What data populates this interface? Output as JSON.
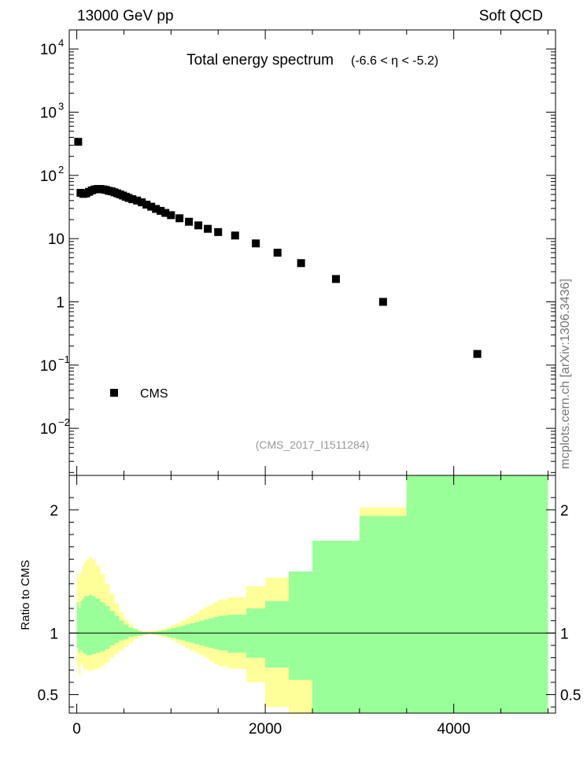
{
  "header": {
    "left": "13000 GeV pp",
    "right": "Soft QCD"
  },
  "side_label": "mcplots.cern.ch [arXiv:1306.3436]",
  "chart_data": [
    {
      "type": "scatter",
      "title": "Total energy spectrum",
      "subtitle": "(-6.6 < η < -5.2)",
      "watermark": "(CMS_2017_I1511284)",
      "xlim": [
        -80,
        5080
      ],
      "ylog": true,
      "ylim": [
        0.0018,
        20000
      ],
      "yticks": [
        {
          "v": 0.01,
          "b": "10",
          "e": "−2"
        },
        {
          "v": 0.1,
          "b": "10",
          "e": "−1"
        },
        {
          "v": 1,
          "b": "1",
          "e": ""
        },
        {
          "v": 10,
          "b": "10",
          "e": ""
        },
        {
          "v": 100,
          "b": "10",
          "e": "2"
        },
        {
          "v": 1000,
          "b": "10",
          "e": "3"
        },
        {
          "v": 10000,
          "b": "10",
          "e": "4"
        }
      ],
      "legend": {
        "label": "CMS",
        "placement": "bottom-left"
      },
      "series": [
        {
          "name": "CMS",
          "color": "#000000",
          "x": [
            15,
            40,
            70,
            100,
            130,
            160,
            190,
            220,
            250,
            280,
            310,
            340,
            370,
            400,
            430,
            460,
            490,
            520,
            550,
            590,
            640,
            690,
            740,
            790,
            840,
            890,
            940,
            1000,
            1090,
            1190,
            1290,
            1390,
            1500,
            1680,
            1900,
            2130,
            2380,
            2750,
            3250,
            4250
          ],
          "y": [
            340,
            53,
            51,
            52,
            55,
            58,
            60,
            61,
            61,
            60,
            59,
            57,
            56,
            54,
            52,
            50,
            48,
            46,
            44,
            42,
            40,
            37.5,
            34.5,
            32,
            29.5,
            27.5,
            25.5,
            23.5,
            21,
            18.5,
            16.2,
            14.3,
            12.7,
            11.2,
            8.4,
            6.0,
            4.1,
            2.3,
            1.0,
            0.15
          ]
        }
      ]
    },
    {
      "type": "area",
      "ylabel": "Ratio to CMS",
      "xlim": [
        -80,
        5080
      ],
      "ylim": [
        0.35,
        2.28
      ],
      "xticks": [
        0,
        2000,
        4000
      ],
      "yticks": [
        0.5,
        1,
        2
      ],
      "reference_line": 1,
      "bands": [
        {
          "name": "yellow",
          "color": "#ffff99",
          "x": [
            0,
            20,
            40,
            60,
            80,
            100,
            130,
            160,
            200,
            250,
            300,
            350,
            400,
            450,
            500,
            550,
            600,
            650,
            700,
            750,
            800,
            850,
            900,
            950,
            1000,
            1050,
            1100,
            1150,
            1200,
            1250,
            1300,
            1350,
            1400,
            1450,
            1500,
            1600,
            1800,
            2000,
            2250,
            2500,
            3000,
            3500,
            4000,
            4500,
            5000
          ],
          "upper": [
            1.48,
            1.45,
            1.5,
            1.55,
            1.58,
            1.6,
            1.62,
            1.6,
            1.55,
            1.48,
            1.4,
            1.32,
            1.24,
            1.17,
            1.11,
            1.07,
            1.04,
            1.02,
            1.015,
            1.015,
            1.02,
            1.025,
            1.035,
            1.05,
            1.065,
            1.08,
            1.1,
            1.12,
            1.14,
            1.16,
            1.19,
            1.21,
            1.23,
            1.25,
            1.27,
            1.29,
            1.38,
            1.45,
            1.5,
            1.75,
            2.02,
            2.15,
            2.28,
            2.28,
            2.28
          ],
          "lower": [
            0.73,
            0.66,
            0.75,
            0.72,
            0.7,
            0.7,
            0.69,
            0.7,
            0.71,
            0.73,
            0.76,
            0.8,
            0.83,
            0.86,
            0.89,
            0.92,
            0.95,
            0.97,
            0.98,
            0.99,
            0.985,
            0.975,
            0.965,
            0.955,
            0.94,
            0.92,
            0.9,
            0.88,
            0.86,
            0.84,
            0.82,
            0.8,
            0.77,
            0.75,
            0.73,
            0.71,
            0.6,
            0.4,
            0.35,
            0.35,
            0.35,
            0.35,
            0.35,
            0.35,
            0.35
          ]
        },
        {
          "name": "green",
          "color": "#99ff99",
          "x": [
            0,
            20,
            40,
            60,
            80,
            100,
            130,
            160,
            200,
            250,
            300,
            350,
            400,
            450,
            500,
            550,
            600,
            650,
            700,
            750,
            800,
            850,
            900,
            950,
            1000,
            1050,
            1100,
            1150,
            1200,
            1250,
            1300,
            1350,
            1400,
            1450,
            1500,
            1600,
            1800,
            2000,
            2250,
            2500,
            3000,
            3500,
            4000,
            4500,
            5000
          ],
          "upper": [
            1.25,
            1.2,
            1.26,
            1.28,
            1.3,
            1.3,
            1.31,
            1.3,
            1.28,
            1.25,
            1.22,
            1.18,
            1.14,
            1.1,
            1.07,
            1.045,
            1.03,
            1.015,
            1.01,
            1.01,
            1.01,
            1.015,
            1.02,
            1.03,
            1.04,
            1.05,
            1.06,
            1.07,
            1.08,
            1.09,
            1.1,
            1.11,
            1.12,
            1.13,
            1.14,
            1.15,
            1.2,
            1.26,
            1.5,
            1.75,
            1.95,
            2.28,
            2.28,
            2.28,
            2.28
          ],
          "lower": [
            0.88,
            0.84,
            0.86,
            0.84,
            0.83,
            0.82,
            0.82,
            0.83,
            0.84,
            0.85,
            0.87,
            0.9,
            0.92,
            0.94,
            0.95,
            0.97,
            0.975,
            0.98,
            0.99,
            0.995,
            0.99,
            0.985,
            0.98,
            0.97,
            0.96,
            0.95,
            0.94,
            0.93,
            0.92,
            0.91,
            0.9,
            0.89,
            0.88,
            0.87,
            0.86,
            0.84,
            0.8,
            0.72,
            0.62,
            0.35,
            0.35,
            0.35,
            0.35,
            0.35,
            0.35
          ]
        }
      ]
    }
  ]
}
